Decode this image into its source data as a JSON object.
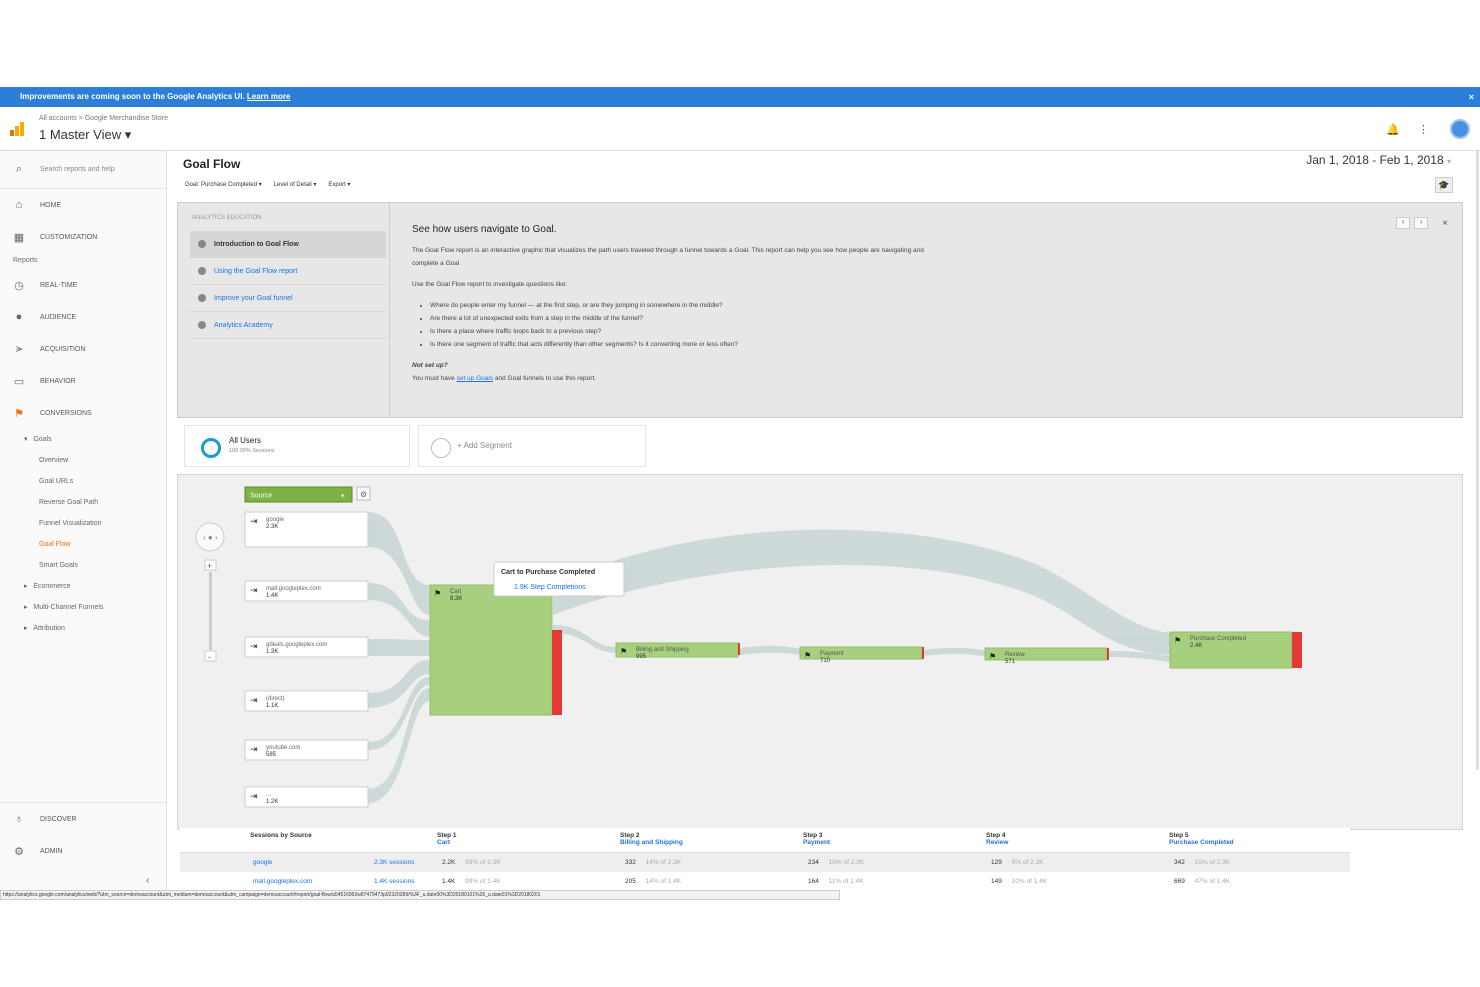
{
  "banner": {
    "text": "Improvements are coming soon to the Google Analytics UI.",
    "link": "Learn more",
    "close": "×"
  },
  "header": {
    "crumb": "All accounts > Google Merchandise Store",
    "view": "1 Master View ▾"
  },
  "sidebar": {
    "search_placeholder": "Search reports and help",
    "top": [
      {
        "label": "HOME",
        "icon": "home-icon"
      },
      {
        "label": "CUSTOMIZATION",
        "icon": "dashboard-icon"
      }
    ],
    "reports_label": "Reports",
    "reports": [
      {
        "label": "REAL-TIME",
        "icon": "clock-icon"
      },
      {
        "label": "AUDIENCE",
        "icon": "person-icon"
      },
      {
        "label": "ACQUISITION",
        "icon": "acquisition-icon"
      },
      {
        "label": "BEHAVIOR",
        "icon": "behavior-icon"
      },
      {
        "label": "CONVERSIONS",
        "icon": "flag-icon"
      }
    ],
    "goals_label": "Goals",
    "goals_items": [
      "Overview",
      "Goal URLs",
      "Reverse Goal Path",
      "Funnel Visualization",
      "Goal Flow",
      "Smart Goals"
    ],
    "groups": [
      "Ecommerce",
      "Multi-Channel Funnels",
      "Attribution"
    ],
    "bottom": [
      {
        "label": "DISCOVER",
        "icon": "lightbulb-icon"
      },
      {
        "label": "ADMIN",
        "icon": "gear-icon"
      }
    ],
    "collapse": "‹"
  },
  "main": {
    "title": "Goal Flow",
    "date_range": "Jan 1, 2018 - Feb 1, 2018",
    "toolbar": [
      "Goal: Purchase Completed ▾",
      "Level of Detail ▾",
      "Export ▾"
    ]
  },
  "education": {
    "label": "ANALYTICS EDUCATION",
    "links": [
      "Introduction to Goal Flow",
      "Using the Goal Flow report",
      "Improve your Goal funnel",
      "Analytics Academy"
    ],
    "heading": "See how users navigate to Goal.",
    "para1": "The Goal Flow report is an interactive graphic that visualizes the path users traveled through a funnel towards a Goal. This report can help you see how people are navigating and complete a Goal",
    "para2": "Use the Goal Flow report to investigate questions like:",
    "bullets": [
      "Where do people enter my funnel — at the first step, or are they jumping in somewhere in the middle?",
      "Are there a lot of unexpected exits from a step in the middle of the funnel?",
      "Is there a place where traffic loops back to a previous step?",
      "Is there one segment of traffic that acts differently than other segments? Is it converting more or less often?"
    ],
    "not_setup": "Not set up?",
    "setup_pre": "You must have",
    "setup_link": "set up Goals",
    "setup_post": "and Goal funnels to use this report."
  },
  "segments": {
    "all_users": "All Users",
    "all_users_sub": "100.00% Sessions",
    "add": "+ Add Segment"
  },
  "flow": {
    "dimension": "Source",
    "sources": [
      {
        "name": "google",
        "value": "2.3K"
      },
      {
        "name": "mall.googleplex.com",
        "value": "1.4K"
      },
      {
        "name": "gdeals.googleplex.com",
        "value": "1.3K"
      },
      {
        "name": "(direct)",
        "value": "1.1K"
      },
      {
        "name": "youtube.com",
        "value": "585"
      },
      {
        "name": "...",
        "value": "1.2K"
      }
    ],
    "steps": [
      {
        "name": "Cart",
        "value": "8.3K"
      },
      {
        "name": "Billing and Shipping",
        "value": "995"
      },
      {
        "name": "Payment",
        "value": "710"
      },
      {
        "name": "Review",
        "value": "571"
      },
      {
        "name": "Purchase Completed",
        "value": "2.4K"
      }
    ],
    "tooltip": {
      "title": "Cart to Purchase Completed",
      "value": "1.9K Step Completions"
    }
  },
  "table": {
    "headers": [
      {
        "step": "",
        "name": "Sessions by Source"
      },
      {
        "step": "Step 1",
        "name": "Cart"
      },
      {
        "step": "Step 2",
        "name": "Billing and Shipping"
      },
      {
        "step": "Step 3",
        "name": "Payment"
      },
      {
        "step": "Step 4",
        "name": "Review"
      },
      {
        "step": "Step 5",
        "name": "Purchase Completed"
      }
    ],
    "rows": [
      {
        "source": "google",
        "sessions": "2.3K sessions",
        "cells": [
          [
            "2.2K",
            "99% of 2.3K"
          ],
          [
            "332",
            "14% of 2.3K"
          ],
          [
            "234",
            "10% of 2.3K"
          ],
          [
            "129",
            "5% of 2.3K"
          ],
          [
            "342",
            "15% of 2.3K"
          ]
        ]
      },
      {
        "source": "mall.googleplex.com",
        "sessions": "1.4K sessions",
        "cells": [
          [
            "1.4K",
            "99% of 1.4K"
          ],
          [
            "205",
            "14% of 1.4K"
          ],
          [
            "164",
            "11% of 1.4K"
          ],
          [
            "149",
            "10% of 1.4K"
          ],
          [
            "669",
            "47% of 1.4K"
          ]
        ]
      }
    ]
  },
  "status_url": "https://analytics.google.com/analytics/web/?utm_source=demoaccount&utm_medium=demoaccount&utm_campaign=demoaccount#report/goal-flow/a54516992w87479473p92320289/%3F_u.date00%3D20180101%26_u.date01%3D20180201"
}
